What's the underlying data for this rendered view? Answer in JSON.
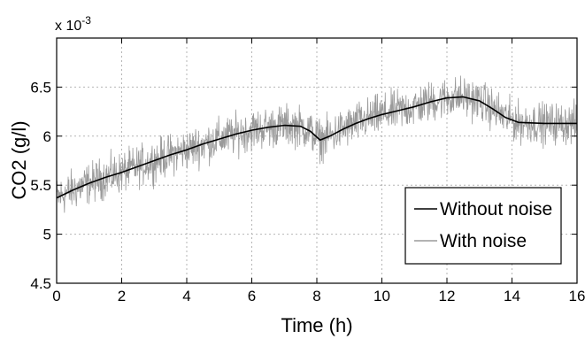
{
  "chart_data": {
    "type": "line",
    "title": "",
    "xlabel": "Time (h)",
    "ylabel": "CO2 (g/l)",
    "y_multiplier_label": "x 10",
    "y_multiplier_exponent": "-3",
    "xlim": [
      0,
      16
    ],
    "ylim": [
      4.5,
      7.0
    ],
    "xticks": [
      "0",
      "2",
      "4",
      "6",
      "8",
      "10",
      "12",
      "14",
      "16"
    ],
    "yticks": [
      "4.5",
      "5",
      "5.5",
      "6",
      "6.5"
    ],
    "grid": true,
    "legend_position": "bottom-right",
    "series": [
      {
        "name": "Without noise",
        "color": "#000000",
        "x": [
          0,
          0.5,
          1,
          1.5,
          2,
          2.5,
          3,
          3.5,
          4,
          4.5,
          5,
          5.5,
          6,
          6.5,
          7,
          7.5,
          7.8,
          8.1,
          8.4,
          8.8,
          9.2,
          9.6,
          10,
          10.5,
          11,
          11.5,
          12,
          12.5,
          13,
          13.4,
          13.8,
          14.2,
          15,
          16
        ],
        "values": [
          5.37,
          5.45,
          5.52,
          5.58,
          5.63,
          5.69,
          5.75,
          5.81,
          5.86,
          5.92,
          5.97,
          6.02,
          6.06,
          6.09,
          6.11,
          6.1,
          6.05,
          5.96,
          6.0,
          6.07,
          6.13,
          6.18,
          6.22,
          6.26,
          6.3,
          6.35,
          6.39,
          6.4,
          6.36,
          6.28,
          6.19,
          6.14,
          6.13,
          6.13
        ]
      },
      {
        "name": "With noise",
        "color": "#9a9a9a",
        "noise_amplitude": 0.17,
        "x": [
          0,
          0.5,
          1,
          1.5,
          2,
          2.5,
          3,
          3.5,
          4,
          4.5,
          5,
          5.5,
          6,
          6.5,
          7,
          7.5,
          7.8,
          8.1,
          8.4,
          8.8,
          9.2,
          9.6,
          10,
          10.5,
          11,
          11.5,
          12,
          12.5,
          13,
          13.4,
          13.8,
          14.2,
          15,
          16
        ],
        "values": [
          5.37,
          5.45,
          5.52,
          5.58,
          5.63,
          5.69,
          5.75,
          5.81,
          5.86,
          5.92,
          5.97,
          6.02,
          6.06,
          6.09,
          6.11,
          6.1,
          6.05,
          5.96,
          6.0,
          6.07,
          6.13,
          6.18,
          6.22,
          6.26,
          6.3,
          6.35,
          6.39,
          6.4,
          6.36,
          6.28,
          6.19,
          6.14,
          6.13,
          6.13
        ]
      }
    ]
  }
}
